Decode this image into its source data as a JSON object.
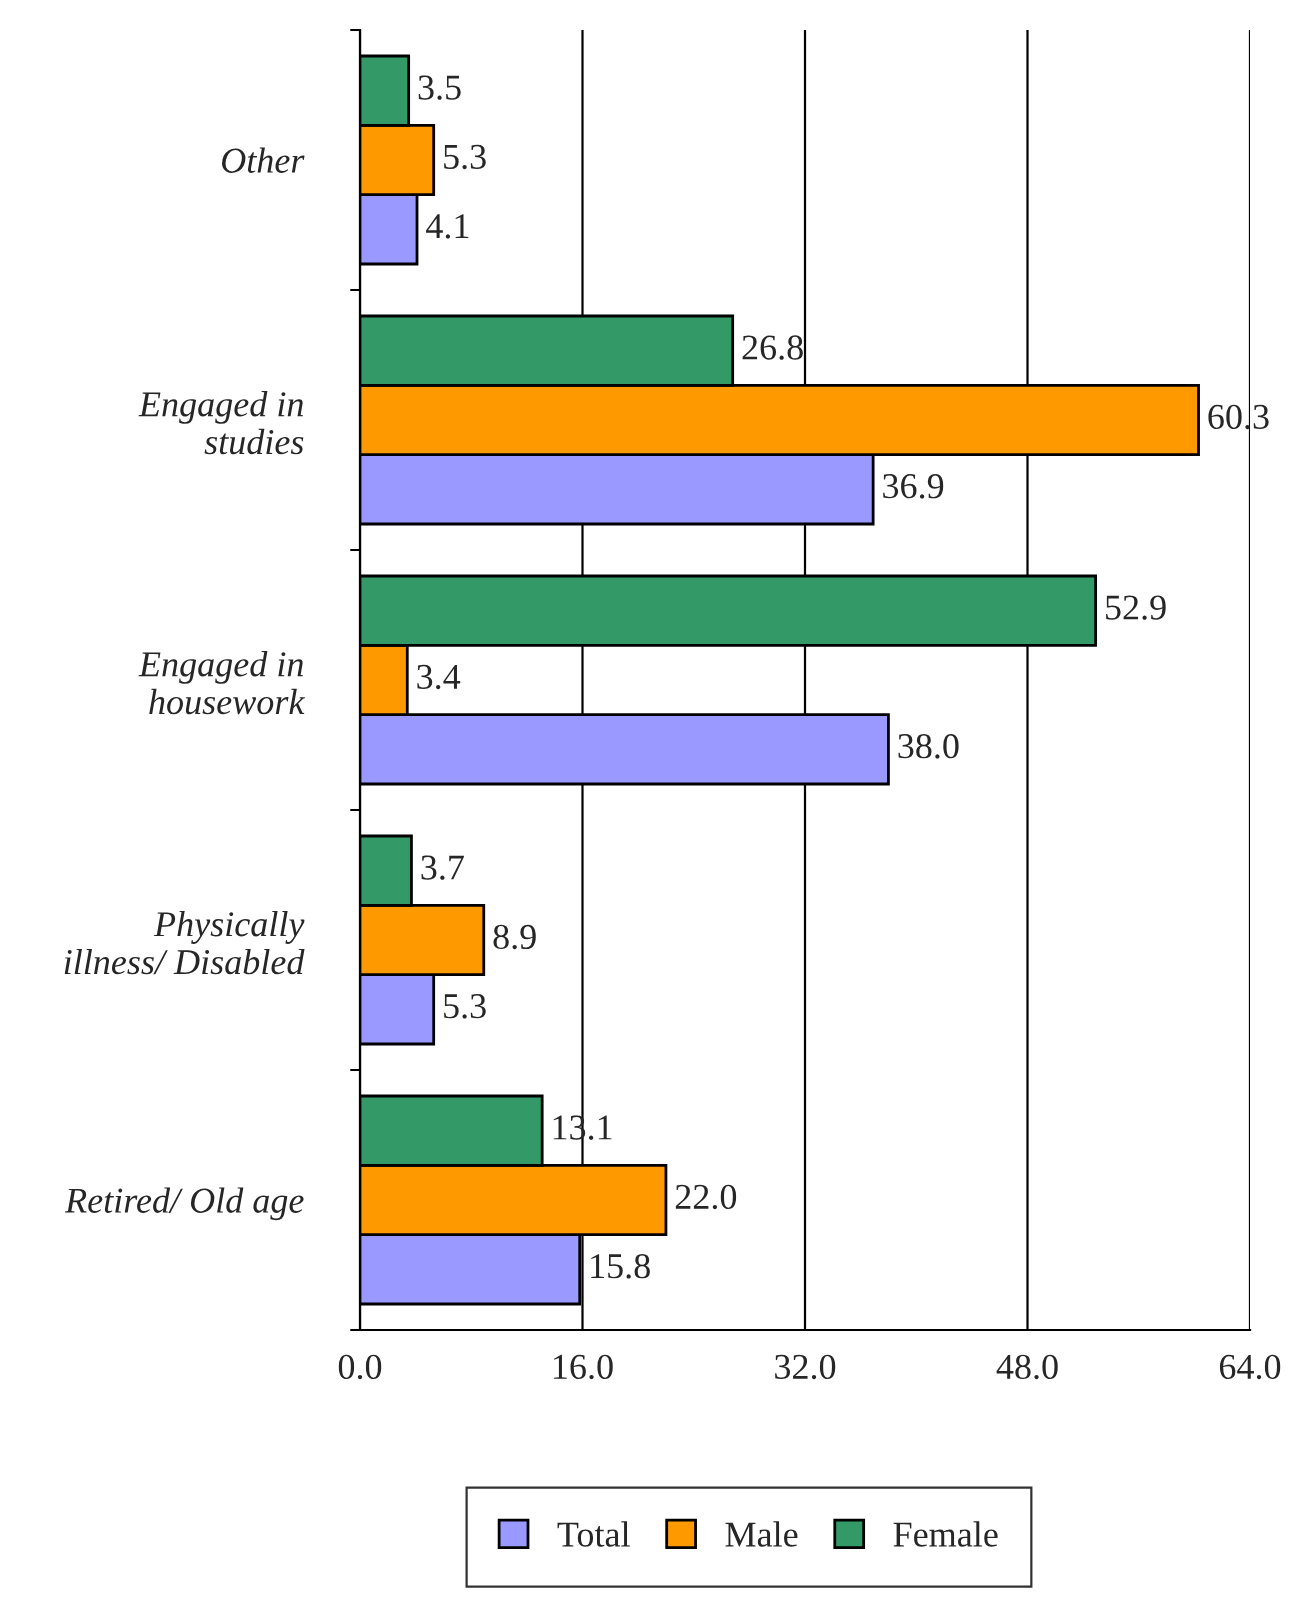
{
  "chart_data": {
    "type": "bar",
    "orientation": "horizontal",
    "categories": [
      "Other",
      "Engaged in\nstudies",
      "Engaged in\nhousework",
      "Physically\nillness/ Disabled",
      "Retired/ Old age"
    ],
    "series": [
      {
        "name": "Total",
        "color": "#9999ff",
        "values": [
          4.1,
          36.9,
          38.0,
          5.3,
          15.8
        ],
        "value_labels": [
          "4.1",
          "36.9",
          "38.0",
          "5.3",
          "15.8"
        ]
      },
      {
        "name": "Male",
        "color": "#ff9900",
        "values": [
          5.3,
          60.3,
          3.4,
          8.9,
          22.0
        ],
        "value_labels": [
          "5.3",
          "60.3",
          "3.4",
          "8.9",
          "22.0"
        ]
      },
      {
        "name": "Female",
        "color": "#339966",
        "values": [
          3.5,
          26.8,
          52.9,
          3.7,
          13.1
        ],
        "value_labels": [
          "3.5",
          "26.8",
          "52.9",
          "3.7",
          "13.1"
        ]
      }
    ],
    "xlim": [
      0,
      64
    ],
    "xticks": [
      {
        "value": 0,
        "label": "0.0"
      },
      {
        "value": 16,
        "label": "16.0"
      },
      {
        "value": 32,
        "label": "32.0"
      },
      {
        "value": 48,
        "label": "48.0"
      },
      {
        "value": 64,
        "label": "64.0"
      }
    ],
    "grid": "x",
    "legend": "bottom"
  }
}
